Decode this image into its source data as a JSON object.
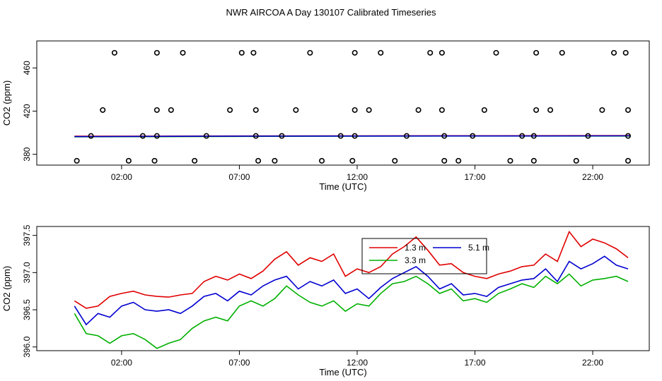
{
  "title": "NWR AIRCOA A  Day 130107  Calibrated Timeseries",
  "colors": {
    "red": "#e00000",
    "blue": "#0000d0",
    "green": "#00b000",
    "axis": "#000000"
  },
  "chart_data": [
    {
      "type": "scatter",
      "name": "top-panel",
      "xlabel": "Time (UTC)",
      "ylabel": "CO2 (ppm)",
      "xlim": [
        -1.6,
        24.4
      ],
      "ylim": [
        370,
        485
      ],
      "xticks": [
        {
          "v": 2,
          "label": "02:00"
        },
        {
          "v": 7,
          "label": "07:00"
        },
        {
          "v": 12,
          "label": "12:00"
        },
        {
          "v": 17,
          "label": "17:00"
        },
        {
          "v": 22,
          "label": "22:00"
        }
      ],
      "yticks": [
        {
          "v": 380,
          "label": "380"
        },
        {
          "v": 420,
          "label": "420"
        },
        {
          "v": 460,
          "label": "460"
        }
      ],
      "points": [
        [
          0.1,
          374
        ],
        [
          0.7,
          397
        ],
        [
          1.2,
          421
        ],
        [
          1.7,
          474
        ],
        [
          2.3,
          374
        ],
        [
          2.9,
          397
        ],
        [
          3.4,
          374
        ],
        [
          3.5,
          397
        ],
        [
          3.5,
          421
        ],
        [
          3.5,
          474
        ],
        [
          4.1,
          421
        ],
        [
          4.6,
          474
        ],
        [
          5.1,
          374
        ],
        [
          5.6,
          397
        ],
        [
          6.6,
          421
        ],
        [
          7.1,
          474
        ],
        [
          7.6,
          474
        ],
        [
          7.7,
          421
        ],
        [
          7.7,
          397
        ],
        [
          7.8,
          374
        ],
        [
          8.5,
          374
        ],
        [
          8.8,
          397
        ],
        [
          9.4,
          421
        ],
        [
          10.0,
          474
        ],
        [
          10.5,
          374
        ],
        [
          11.3,
          397
        ],
        [
          11.8,
          374
        ],
        [
          11.9,
          397
        ],
        [
          11.9,
          421
        ],
        [
          11.9,
          474
        ],
        [
          12.5,
          421
        ],
        [
          13.0,
          474
        ],
        [
          13.6,
          374
        ],
        [
          14.1,
          397
        ],
        [
          14.6,
          421
        ],
        [
          15.1,
          474
        ],
        [
          15.6,
          474
        ],
        [
          15.6,
          421
        ],
        [
          15.7,
          397
        ],
        [
          15.7,
          374
        ],
        [
          16.3,
          374
        ],
        [
          16.9,
          397
        ],
        [
          17.4,
          421
        ],
        [
          17.9,
          474
        ],
        [
          18.5,
          374
        ],
        [
          19.0,
          397
        ],
        [
          19.5,
          374
        ],
        [
          19.5,
          397
        ],
        [
          19.6,
          421
        ],
        [
          19.6,
          474
        ],
        [
          20.2,
          421
        ],
        [
          20.7,
          474
        ],
        [
          21.3,
          374
        ],
        [
          21.8,
          397
        ],
        [
          22.4,
          421
        ],
        [
          22.9,
          474
        ],
        [
          23.4,
          474
        ],
        [
          23.5,
          421
        ],
        [
          23.5,
          397
        ],
        [
          23.5,
          374
        ]
      ],
      "series": [
        {
          "name": "1.3 m",
          "color": "#e00000",
          "x": [
            0,
            6,
            12,
            18,
            23.6
          ],
          "values": [
            396.7,
            396.9,
            397.1,
            397.2,
            397.3
          ]
        },
        {
          "name": "3.3 m",
          "color": "#00b000",
          "x": [
            0,
            6,
            12,
            18,
            23.6
          ],
          "values": [
            396.2,
            396.5,
            396.8,
            396.9,
            396.9
          ]
        },
        {
          "name": "5.1 m",
          "color": "#0000d0",
          "x": [
            0,
            6,
            12,
            18,
            23.6
          ],
          "values": [
            396.4,
            396.7,
            396.9,
            397.0,
            397.1
          ]
        }
      ]
    },
    {
      "type": "line",
      "name": "bottom-panel",
      "xlabel": "Time (UTC)",
      "ylabel": "CO2 (ppm)",
      "xlim": [
        -1.6,
        24.4
      ],
      "ylim": [
        395.95,
        397.62
      ],
      "xticks": [
        {
          "v": 2,
          "label": "02:00"
        },
        {
          "v": 7,
          "label": "07:00"
        },
        {
          "v": 12,
          "label": "12:00"
        },
        {
          "v": 17,
          "label": "17:00"
        },
        {
          "v": 22,
          "label": "22:00"
        }
      ],
      "yticks": [
        {
          "v": 396.0,
          "label": "396.0"
        },
        {
          "v": 396.5,
          "label": "396.5"
        },
        {
          "v": 397.0,
          "label": "397.0"
        },
        {
          "v": 397.5,
          "label": "397.5"
        }
      ],
      "legend": {
        "position": "top-center",
        "entries": [
          "1.3 m",
          "5.1 m",
          "3.3 m"
        ]
      },
      "series": [
        {
          "name": "1.3 m",
          "color": "#e00000",
          "x": [
            0.0,
            0.5,
            1.0,
            1.5,
            2.0,
            2.5,
            3.0,
            3.5,
            4.0,
            4.5,
            5.0,
            5.5,
            6.0,
            6.5,
            7.0,
            7.5,
            8.0,
            8.5,
            9.0,
            9.5,
            10.0,
            10.5,
            11.0,
            11.5,
            12.0,
            12.5,
            13.0,
            13.5,
            14.0,
            14.5,
            15.0,
            15.5,
            16.0,
            16.5,
            17.0,
            17.5,
            18.0,
            18.5,
            19.0,
            19.5,
            20.0,
            20.5,
            21.0,
            21.5,
            22.0,
            22.5,
            23.0,
            23.5
          ],
          "values": [
            396.62,
            396.52,
            396.55,
            396.68,
            396.72,
            396.75,
            396.7,
            396.68,
            396.67,
            396.7,
            396.72,
            396.88,
            396.95,
            396.9,
            396.98,
            396.92,
            397.02,
            397.18,
            397.28,
            397.1,
            397.2,
            397.15,
            397.25,
            396.95,
            397.05,
            397.0,
            397.08,
            397.25,
            397.35,
            397.48,
            397.3,
            397.1,
            397.12,
            397.0,
            396.95,
            396.92,
            396.98,
            397.02,
            397.08,
            397.1,
            397.25,
            397.15,
            397.55,
            397.35,
            397.45,
            397.4,
            397.32,
            397.2
          ]
        },
        {
          "name": "5.1 m",
          "color": "#0000d0",
          "x": [
            0.0,
            0.5,
            1.0,
            1.5,
            2.0,
            2.5,
            3.0,
            3.5,
            4.0,
            4.5,
            5.0,
            5.5,
            6.0,
            6.5,
            7.0,
            7.5,
            8.0,
            8.5,
            9.0,
            9.5,
            10.0,
            10.5,
            11.0,
            11.5,
            12.0,
            12.5,
            13.0,
            13.5,
            14.0,
            14.5,
            15.0,
            15.5,
            16.0,
            16.5,
            17.0,
            17.5,
            18.0,
            18.5,
            19.0,
            19.5,
            20.0,
            20.5,
            21.0,
            21.5,
            22.0,
            22.5,
            23.0,
            23.5
          ],
          "values": [
            396.55,
            396.3,
            396.45,
            396.4,
            396.55,
            396.6,
            396.5,
            396.48,
            396.5,
            396.45,
            396.55,
            396.68,
            396.72,
            396.62,
            396.75,
            396.7,
            396.82,
            396.9,
            396.95,
            396.78,
            396.88,
            396.82,
            396.9,
            396.72,
            396.78,
            396.65,
            396.8,
            396.92,
            397.0,
            397.08,
            396.95,
            396.78,
            396.85,
            396.7,
            396.72,
            396.68,
            396.8,
            396.85,
            396.9,
            396.92,
            397.05,
            396.88,
            397.15,
            397.05,
            397.12,
            397.22,
            397.1,
            397.05
          ]
        },
        {
          "name": "3.3 m",
          "color": "#00b000",
          "x": [
            0.0,
            0.5,
            1.0,
            1.5,
            2.0,
            2.5,
            3.0,
            3.5,
            4.0,
            4.5,
            5.0,
            5.5,
            6.0,
            6.5,
            7.0,
            7.5,
            8.0,
            8.5,
            9.0,
            9.5,
            10.0,
            10.5,
            11.0,
            11.5,
            12.0,
            12.5,
            13.0,
            13.5,
            14.0,
            14.5,
            15.0,
            15.5,
            16.0,
            16.5,
            17.0,
            17.5,
            18.0,
            18.5,
            19.0,
            19.5,
            20.0,
            20.5,
            21.0,
            21.5,
            22.0,
            22.5,
            23.0,
            23.5
          ],
          "values": [
            396.45,
            396.18,
            396.15,
            396.05,
            396.15,
            396.18,
            396.1,
            395.98,
            396.05,
            396.1,
            396.25,
            396.35,
            396.4,
            396.35,
            396.55,
            396.62,
            396.55,
            396.65,
            396.82,
            396.7,
            396.6,
            396.55,
            396.62,
            396.48,
            396.58,
            396.55,
            396.72,
            396.85,
            396.88,
            396.95,
            396.85,
            396.72,
            396.78,
            396.62,
            396.65,
            396.6,
            396.72,
            396.78,
            396.85,
            396.8,
            396.95,
            396.85,
            396.98,
            396.82,
            396.9,
            396.92,
            396.95,
            396.88
          ]
        }
      ]
    }
  ]
}
